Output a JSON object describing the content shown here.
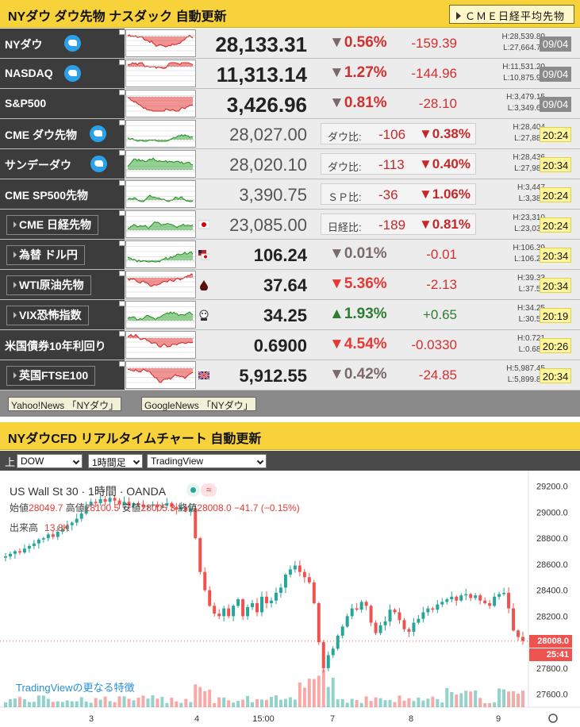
{
  "header": {
    "title": "NYダウ ダウ先物 ナスダック 自動更新",
    "cme_button": "ＣＭＥ日経平均先物"
  },
  "rows": [
    {
      "name": "NYダウ",
      "twitter": true,
      "price": "28,133.31",
      "pct": "0.56%",
      "dir": "down",
      "change": "-159.39",
      "high": "H:28,539.80",
      "low": "L:27,664.70",
      "time": "09/04"
    },
    {
      "name": "NASDAQ",
      "twitter": true,
      "price": "11,313.14",
      "pct": "1.27%",
      "dir": "down",
      "change": "-144.96",
      "high": "H:11,531.20",
      "low": "L:10,875.90",
      "time": "09/04"
    },
    {
      "name": "S&P500",
      "twitter": false,
      "price": "3,426.96",
      "pct": "0.81%",
      "dir": "down",
      "change": "-28.10",
      "high": "H:3,479.15",
      "low": "L:3,349.63",
      "time": "09/04"
    },
    {
      "name": "CME ダウ先物",
      "twitter": true,
      "price": "28,027.00",
      "cmp_label": "ダウ比:",
      "change": "-106",
      "pct": "0.38%",
      "high": "H:28,404",
      "low": "L:27,886",
      "time": "20:24"
    },
    {
      "name": "サンデーダウ",
      "twitter": true,
      "price": "28,020.10",
      "cmp_label": "ダウ比:",
      "change": "-113",
      "pct": "0.40%",
      "high": "H:28,436",
      "low": "L:27,983",
      "time": "20:34"
    },
    {
      "name": "CME SP500先物",
      "twitter": false,
      "price": "3,390.75",
      "cmp_label": "ＳＰ比:",
      "change": "-36",
      "pct": "1.06%",
      "high": "H:3,447",
      "low": "L:3,380",
      "time": "20:24"
    },
    {
      "name": "CME 日経先物",
      "twitter": false,
      "price": "23,085.00",
      "cmp_label": "日経比:",
      "change": "-189",
      "pct": "0.81%",
      "high": "H:23,310",
      "low": "L:23,035",
      "time": "20:24"
    },
    {
      "name": "為替 ドル円",
      "price": "106.24",
      "pct": "0.01%",
      "dir": "down-grey",
      "change": "-0.01",
      "high": "H:106.39",
      "low": "L:106.21",
      "time": "20:34"
    },
    {
      "name": "WTI原油先物",
      "price": "37.64",
      "pct": "5.36%",
      "dir": "down",
      "change": "-2.13",
      "high": "H:39.33",
      "low": "L:37.54",
      "time": "20:34"
    },
    {
      "name": "VIX恐怖指数",
      "price": "34.25",
      "pct": "1.93%",
      "dir": "up",
      "change": "+0.65",
      "high": "H:34.25",
      "low": "L:30.52",
      "time": "20:19"
    },
    {
      "name": "米国債券10年利回り",
      "price": "0.6900",
      "pct": "4.54%",
      "dir": "down",
      "change": "-0.0330",
      "high": "H:0.721",
      "low": "L:0.684",
      "time": "20:26"
    },
    {
      "name": "英国FTSE100",
      "price": "5,912.55",
      "pct": "0.42%",
      "dir": "down-grey",
      "change": "-24.85",
      "high": "H:5,987.45",
      "low": "L:5,899.82",
      "time": "20:34"
    }
  ],
  "links": {
    "yahoo": "Yahoo!News 「NYダウ」",
    "google": "GoogleNews 「NYダウ」"
  },
  "section2": {
    "title": "NYダウCFD リアルタイムチャート 自動更新",
    "up_label": "上",
    "select_symbol": "DOW",
    "select_interval": "1時間足",
    "select_provider": "TradingView"
  },
  "chart": {
    "symbol_title": "US Wall St 30 · 1時間 · OANDA",
    "open_label": "始値",
    "open": "28049.7",
    "high_label": "高値",
    "high": "28100.5",
    "low_label": "安値",
    "low": "28005.3",
    "close_label": "終値",
    "close": "28008.0",
    "change": "−41.7 (−0.15%)",
    "volume_label": "出来高",
    "volume": "13.8K",
    "tv_link": "TradingViewの更なる特徴",
    "last_price": "28008.0",
    "countdown": "25:41",
    "colors": {
      "up": "#26a69a",
      "down": "#ef5350"
    }
  },
  "chart_data": {
    "type": "candlestick",
    "y_ticks": [
      27600,
      27800,
      28000,
      28200,
      28400,
      28600,
      28800,
      29000,
      29200
    ],
    "y_tick_labels": [
      "27600.0",
      "27800.0",
      "28000.0",
      "28200.0",
      "28400.0",
      "28600.0",
      "28800.0",
      "29000.0",
      "29200.0"
    ],
    "ylim": [
      27500,
      29320
    ],
    "x_tick_labels": [
      "3",
      "4",
      "15:00",
      "7",
      "8",
      "9"
    ],
    "close_path": [
      28660,
      28680,
      28700,
      28690,
      28720,
      28740,
      28760,
      28790,
      28800,
      28830,
      28810,
      28850,
      28870,
      28900,
      28920,
      28950,
      28990,
      29050,
      29080,
      29070,
      29100,
      29080,
      29110,
      29090,
      29060,
      29080,
      29050,
      29070,
      29060,
      29040,
      29050,
      29060,
      29040,
      29050,
      29070,
      29040,
      29020,
      29040,
      29010,
      29030,
      28800,
      28540,
      28400,
      28280,
      28220,
      28200,
      28260,
      28200,
      28280,
      28330,
      28200,
      28270,
      28300,
      28230,
      28350,
      28300,
      28320,
      28380,
      28420,
      28520,
      28560,
      28590,
      28540,
      28500,
      28460,
      28300,
      28000,
      27800,
      27900,
      27950,
      28050,
      28120,
      28200,
      28260,
      28250,
      28310,
      28280,
      28150,
      28070,
      28130,
      28160,
      28250,
      28230,
      28170,
      28100,
      28080,
      28150,
      28180,
      28230,
      28260,
      28250,
      28290,
      28310,
      28330,
      28350,
      28320,
      28360,
      28370,
      28340,
      28360,
      28320,
      28300,
      28280,
      28350,
      28370,
      28380,
      28260,
      28090,
      28040,
      28010
    ]
  }
}
